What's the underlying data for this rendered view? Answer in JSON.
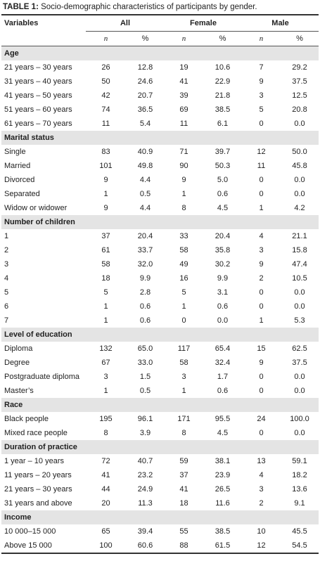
{
  "caption": {
    "label": "TABLE 1:",
    "text": "Socio-demographic characteristics of participants by gender."
  },
  "header": {
    "variables": "Variables",
    "groups": [
      "All",
      "Female",
      "Male"
    ],
    "subheaders": [
      "n",
      "%",
      "n",
      "%",
      "n",
      "%"
    ]
  },
  "sections": [
    {
      "title": "Age",
      "rows": [
        [
          "21 years – 30 years",
          "26",
          "12.8",
          "19",
          "10.6",
          "7",
          "29.2"
        ],
        [
          "31 years – 40 years",
          "50",
          "24.6",
          "41",
          "22.9",
          "9",
          "37.5"
        ],
        [
          "41 years – 50 years",
          "42",
          "20.7",
          "39",
          "21.8",
          "3",
          "12.5"
        ],
        [
          "51 years – 60 years",
          "74",
          "36.5",
          "69",
          "38.5",
          "5",
          "20.8"
        ],
        [
          "61 years – 70 years",
          "11",
          "5.4",
          "11",
          "6.1",
          "0",
          "0.0"
        ]
      ]
    },
    {
      "title": "Marital status",
      "rows": [
        [
          "Single",
          "83",
          "40.9",
          "71",
          "39.7",
          "12",
          "50.0"
        ],
        [
          "Married",
          "101",
          "49.8",
          "90",
          "50.3",
          "11",
          "45.8"
        ],
        [
          "Divorced",
          "9",
          "4.4",
          "9",
          "5.0",
          "0",
          "0.0"
        ],
        [
          "Separated",
          "1",
          "0.5",
          "1",
          "0.6",
          "0",
          "0.0"
        ],
        [
          "Widow or widower",
          "9",
          "4.4",
          "8",
          "4.5",
          "1",
          "4.2"
        ]
      ]
    },
    {
      "title": "Number of children",
      "rows": [
        [
          "1",
          "37",
          "20.4",
          "33",
          "20.4",
          "4",
          "21.1"
        ],
        [
          "2",
          "61",
          "33.7",
          "58",
          "35.8",
          "3",
          "15.8"
        ],
        [
          "3",
          "58",
          "32.0",
          "49",
          "30.2",
          "9",
          "47.4"
        ],
        [
          "4",
          "18",
          "9.9",
          "16",
          "9.9",
          "2",
          "10.5"
        ],
        [
          "5",
          "5",
          "2.8",
          "5",
          "3.1",
          "0",
          "0.0"
        ],
        [
          "6",
          "1",
          "0.6",
          "1",
          "0.6",
          "0",
          "0.0"
        ],
        [
          "7",
          "1",
          "0.6",
          "0",
          "0.0",
          "1",
          "5.3"
        ]
      ]
    },
    {
      "title": "Level of education",
      "rows": [
        [
          "Diploma",
          "132",
          "65.0",
          "117",
          "65.4",
          "15",
          "62.5"
        ],
        [
          "Degree",
          "67",
          "33.0",
          "58",
          "32.4",
          "9",
          "37.5"
        ],
        [
          "Postgraduate diploma",
          "3",
          "1.5",
          "3",
          "1.7",
          "0",
          "0.0"
        ],
        [
          "Master’s",
          "1",
          "0.5",
          "1",
          "0.6",
          "0",
          "0.0"
        ]
      ]
    },
    {
      "title": "Race",
      "rows": [
        [
          "Black people",
          "195",
          "96.1",
          "171",
          "95.5",
          "24",
          "100.0"
        ],
        [
          "Mixed race people",
          "8",
          "3.9",
          "8",
          "4.5",
          "0",
          "0.0"
        ]
      ]
    },
    {
      "title": "Duration of practice",
      "rows": [
        [
          "1 year – 10 years",
          "72",
          "40.7",
          "59",
          "38.1",
          "13",
          "59.1"
        ],
        [
          "11 years – 20 years",
          "41",
          "23.2",
          "37",
          "23.9",
          "4",
          "18.2"
        ],
        [
          "21 years – 30 years",
          "44",
          "24.9",
          "41",
          "26.5",
          "3",
          "13.6"
        ],
        [
          "31 years and above",
          "20",
          "11.3",
          "18",
          "11.6",
          "2",
          "9.1"
        ]
      ]
    },
    {
      "title": "Income",
      "rows": [
        [
          "10 000–15 000",
          "65",
          "39.4",
          "55",
          "38.5",
          "10",
          "45.5"
        ],
        [
          "Above 15 000",
          "100",
          "60.6",
          "88",
          "61.5",
          "12",
          "54.5"
        ]
      ]
    }
  ]
}
